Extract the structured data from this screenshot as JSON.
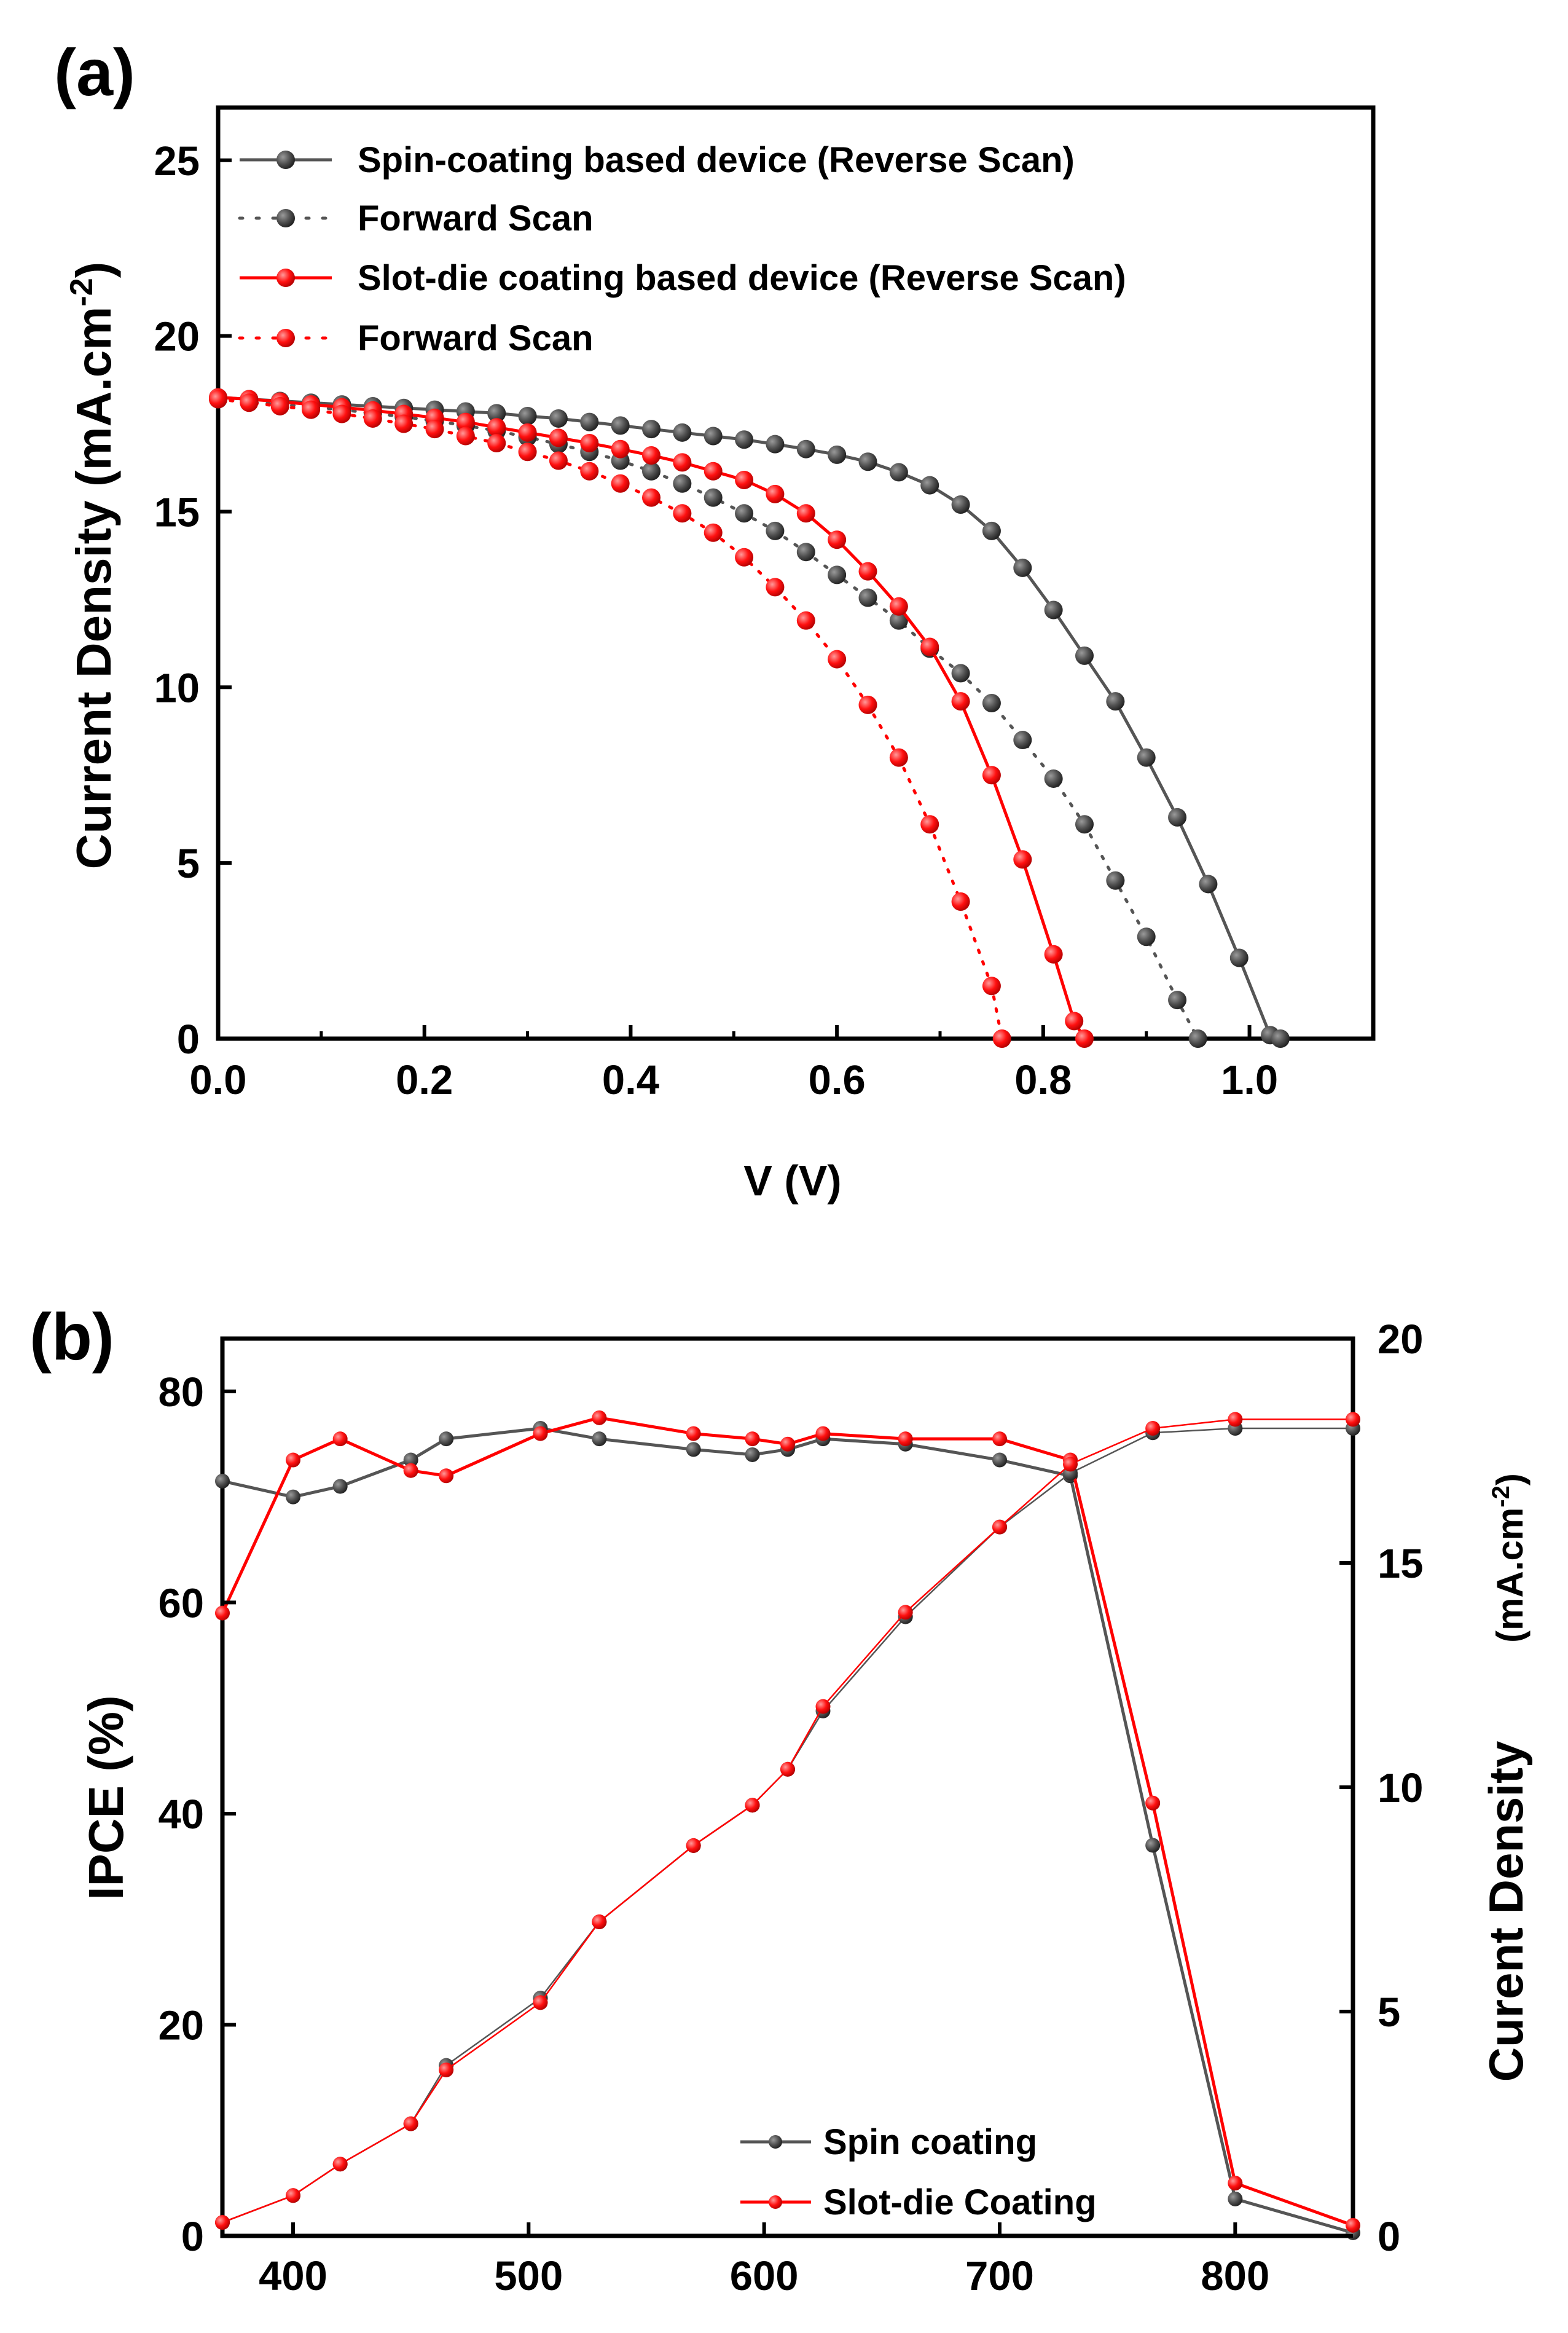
{
  "colors": {
    "spin": "#555555",
    "slot": "#ff0000",
    "axis": "#000000"
  },
  "chart_data": [
    {
      "panel_label": "(a)",
      "type": "line",
      "xlabel": "V (V)",
      "ylabel": {
        "main": "Current Density (mA.cm",
        "sup": "-2",
        "end": ")"
      },
      "xlim": [
        0.0,
        1.12
      ],
      "ylim": [
        0,
        26.5
      ],
      "x_ticks": [
        0.0,
        0.2,
        0.4,
        0.6,
        0.8,
        1.0
      ],
      "x_tick_labels": [
        "0.0",
        "0.2",
        "0.4",
        "0.6",
        "0.8",
        "1.0"
      ],
      "y_ticks": [
        0,
        5,
        10,
        15,
        20,
        25
      ],
      "y_tick_labels": [
        "0",
        "5",
        "10",
        "15",
        "20",
        "25"
      ],
      "legend": [
        {
          "label": "Spin-coating based device (Reverse Scan)",
          "series": 0
        },
        {
          "label": "Forward Scan",
          "series": 1
        },
        {
          "label": "Slot-die coating based device (Reverse Scan)",
          "series": 2
        },
        {
          "label": "Forward Scan",
          "series": 3
        }
      ],
      "series": [
        {
          "name": "Spin-coating based device (Reverse Scan)",
          "color": "#555555",
          "line": "solid",
          "points": [
            [
              0.0,
              18.25
            ],
            [
              0.03,
              18.2
            ],
            [
              0.06,
              18.15
            ],
            [
              0.09,
              18.1
            ],
            [
              0.12,
              18.05
            ],
            [
              0.15,
              18.0
            ],
            [
              0.18,
              17.95
            ],
            [
              0.21,
              17.9
            ],
            [
              0.24,
              17.85
            ],
            [
              0.27,
              17.8
            ],
            [
              0.3,
              17.72
            ],
            [
              0.33,
              17.65
            ],
            [
              0.36,
              17.55
            ],
            [
              0.39,
              17.45
            ],
            [
              0.42,
              17.35
            ],
            [
              0.45,
              17.25
            ],
            [
              0.48,
              17.15
            ],
            [
              0.51,
              17.05
            ],
            [
              0.54,
              16.92
            ],
            [
              0.57,
              16.78
            ],
            [
              0.6,
              16.62
            ],
            [
              0.63,
              16.42
            ],
            [
              0.66,
              16.12
            ],
            [
              0.69,
              15.75
            ],
            [
              0.72,
              15.2
            ],
            [
              0.75,
              14.45
            ],
            [
              0.78,
              13.4
            ],
            [
              0.81,
              12.2
            ],
            [
              0.84,
              10.9
            ],
            [
              0.87,
              9.6
            ],
            [
              0.9,
              8.0
            ],
            [
              0.93,
              6.3
            ],
            [
              0.96,
              4.4
            ],
            [
              0.99,
              2.3
            ],
            [
              1.02,
              0.1
            ],
            [
              1.03,
              0.0
            ]
          ]
        },
        {
          "name": "Forward Scan (spin-coating)",
          "color": "#555555",
          "line": "dotted",
          "points": [
            [
              0.0,
              18.2
            ],
            [
              0.03,
              18.12
            ],
            [
              0.06,
              18.05
            ],
            [
              0.09,
              17.98
            ],
            [
              0.12,
              17.9
            ],
            [
              0.15,
              17.8
            ],
            [
              0.18,
              17.7
            ],
            [
              0.21,
              17.58
            ],
            [
              0.24,
              17.45
            ],
            [
              0.27,
              17.3
            ],
            [
              0.3,
              17.12
            ],
            [
              0.33,
              16.92
            ],
            [
              0.36,
              16.7
            ],
            [
              0.39,
              16.45
            ],
            [
              0.42,
              16.15
            ],
            [
              0.45,
              15.8
            ],
            [
              0.48,
              15.4
            ],
            [
              0.51,
              14.95
            ],
            [
              0.54,
              14.45
            ],
            [
              0.57,
              13.85
            ],
            [
              0.6,
              13.2
            ],
            [
              0.63,
              12.55
            ],
            [
              0.66,
              11.9
            ],
            [
              0.69,
              11.1
            ],
            [
              0.72,
              10.4
            ],
            [
              0.75,
              9.55
            ],
            [
              0.78,
              8.5
            ],
            [
              0.81,
              7.4
            ],
            [
              0.84,
              6.1
            ],
            [
              0.87,
              4.5
            ],
            [
              0.9,
              2.9
            ],
            [
              0.93,
              1.1
            ],
            [
              0.95,
              0.0
            ]
          ]
        },
        {
          "name": "Slot-die coating based device (Reverse Scan)",
          "color": "#ff0000",
          "line": "solid",
          "points": [
            [
              0.0,
              18.25
            ],
            [
              0.03,
              18.2
            ],
            [
              0.06,
              18.13
            ],
            [
              0.09,
              18.05
            ],
            [
              0.12,
              17.97
            ],
            [
              0.15,
              17.88
            ],
            [
              0.18,
              17.78
            ],
            [
              0.21,
              17.67
            ],
            [
              0.24,
              17.55
            ],
            [
              0.27,
              17.4
            ],
            [
              0.3,
              17.25
            ],
            [
              0.33,
              17.1
            ],
            [
              0.36,
              16.95
            ],
            [
              0.39,
              16.78
            ],
            [
              0.42,
              16.6
            ],
            [
              0.45,
              16.4
            ],
            [
              0.48,
              16.15
            ],
            [
              0.51,
              15.9
            ],
            [
              0.54,
              15.5
            ],
            [
              0.57,
              14.95
            ],
            [
              0.6,
              14.2
            ],
            [
              0.63,
              13.3
            ],
            [
              0.66,
              12.3
            ],
            [
              0.69,
              11.15
            ],
            [
              0.72,
              9.6
            ],
            [
              0.75,
              7.5
            ],
            [
              0.78,
              5.1
            ],
            [
              0.81,
              2.4
            ],
            [
              0.83,
              0.5
            ],
            [
              0.84,
              0.0
            ]
          ]
        },
        {
          "name": "Forward Scan (slot-die coating)",
          "color": "#ff0000",
          "line": "dotted",
          "points": [
            [
              0.0,
              18.2
            ],
            [
              0.03,
              18.1
            ],
            [
              0.06,
              18.0
            ],
            [
              0.09,
              17.9
            ],
            [
              0.12,
              17.78
            ],
            [
              0.15,
              17.65
            ],
            [
              0.18,
              17.5
            ],
            [
              0.21,
              17.35
            ],
            [
              0.24,
              17.15
            ],
            [
              0.27,
              16.95
            ],
            [
              0.3,
              16.7
            ],
            [
              0.33,
              16.45
            ],
            [
              0.36,
              16.15
            ],
            [
              0.39,
              15.8
            ],
            [
              0.42,
              15.4
            ],
            [
              0.45,
              14.95
            ],
            [
              0.48,
              14.4
            ],
            [
              0.51,
              13.7
            ],
            [
              0.54,
              12.85
            ],
            [
              0.57,
              11.9
            ],
            [
              0.6,
              10.8
            ],
            [
              0.63,
              9.5
            ],
            [
              0.66,
              8.0
            ],
            [
              0.69,
              6.1
            ],
            [
              0.72,
              3.9
            ],
            [
              0.75,
              1.5
            ],
            [
              0.76,
              0.0
            ]
          ]
        }
      ]
    },
    {
      "panel_label": "(b)",
      "type": "line",
      "xlabel": "",
      "ylabel_left": "IPCE (%)",
      "ylabel_right": {
        "main": "Curent Density",
        "unit_main": "(mA.cm",
        "unit_sup": "-2",
        "unit_end": ")"
      },
      "xlim": [
        370,
        850
      ],
      "ylim_left": [
        0,
        85
      ],
      "ylim_right": [
        0,
        20
      ],
      "x_ticks": [
        400,
        500,
        600,
        700,
        800
      ],
      "x_tick_labels": [
        "400",
        "500",
        "600",
        "700",
        "800"
      ],
      "y_ticks_left": [
        0,
        20,
        40,
        60,
        80
      ],
      "y_tick_labels_left": [
        "0",
        "20",
        "40",
        "60",
        "80"
      ],
      "y_ticks_right": [
        0,
        5,
        10,
        15,
        20
      ],
      "y_tick_labels_right": [
        "0",
        "5",
        "10",
        "15",
        "20"
      ],
      "legend": [
        {
          "label": "Spin coating",
          "series": 0
        },
        {
          "label": "Slot-die Coating",
          "series": 1
        }
      ],
      "series": [
        {
          "name": "Spin coating (IPCE)",
          "axis": "left",
          "color": "#555555",
          "legend": true,
          "x": [
            370,
            400,
            420,
            450,
            465,
            505,
            530,
            570,
            595,
            610,
            625,
            660,
            700,
            730,
            765,
            800,
            850
          ],
          "y": [
            71.5,
            70,
            71,
            73.5,
            75.5,
            76.5,
            75.5,
            74.5,
            74,
            74.5,
            75.5,
            75,
            73.5,
            72,
            37,
            3.5,
            0.3
          ]
        },
        {
          "name": "Slot-die Coating (IPCE)",
          "axis": "left",
          "color": "#ff0000",
          "legend": true,
          "x": [
            370,
            400,
            420,
            450,
            465,
            505,
            530,
            570,
            595,
            610,
            625,
            660,
            700,
            730,
            765,
            800,
            850
          ],
          "y": [
            59,
            73.5,
            75.5,
            72.5,
            72,
            76,
            77.5,
            76,
            75.5,
            75,
            76,
            75.5,
            75.5,
            73.5,
            41,
            5,
            1
          ]
        },
        {
          "name": "Spin coating (integrated current density)",
          "axis": "right",
          "color": "#555555",
          "legend": false,
          "x": [
            370,
            400,
            420,
            450,
            465,
            505,
            530,
            570,
            595,
            610,
            625,
            660,
            700,
            730,
            765,
            800,
            850
          ],
          "y": [
            0.3,
            0.9,
            1.6,
            2.5,
            3.8,
            5.3,
            7.0,
            8.7,
            9.6,
            10.4,
            11.7,
            13.8,
            15.8,
            17.0,
            17.9,
            18.0,
            18.0
          ]
        },
        {
          "name": "Slot-die Coating (integrated current density)",
          "axis": "right",
          "color": "#ff0000",
          "legend": false,
          "x": [
            370,
            400,
            420,
            450,
            465,
            505,
            530,
            570,
            595,
            610,
            625,
            660,
            700,
            730,
            765,
            800,
            850
          ],
          "y": [
            0.3,
            0.9,
            1.6,
            2.5,
            3.7,
            5.2,
            7.0,
            8.7,
            9.6,
            10.4,
            11.8,
            13.9,
            15.8,
            17.2,
            18.0,
            18.2,
            18.2
          ]
        }
      ]
    }
  ]
}
